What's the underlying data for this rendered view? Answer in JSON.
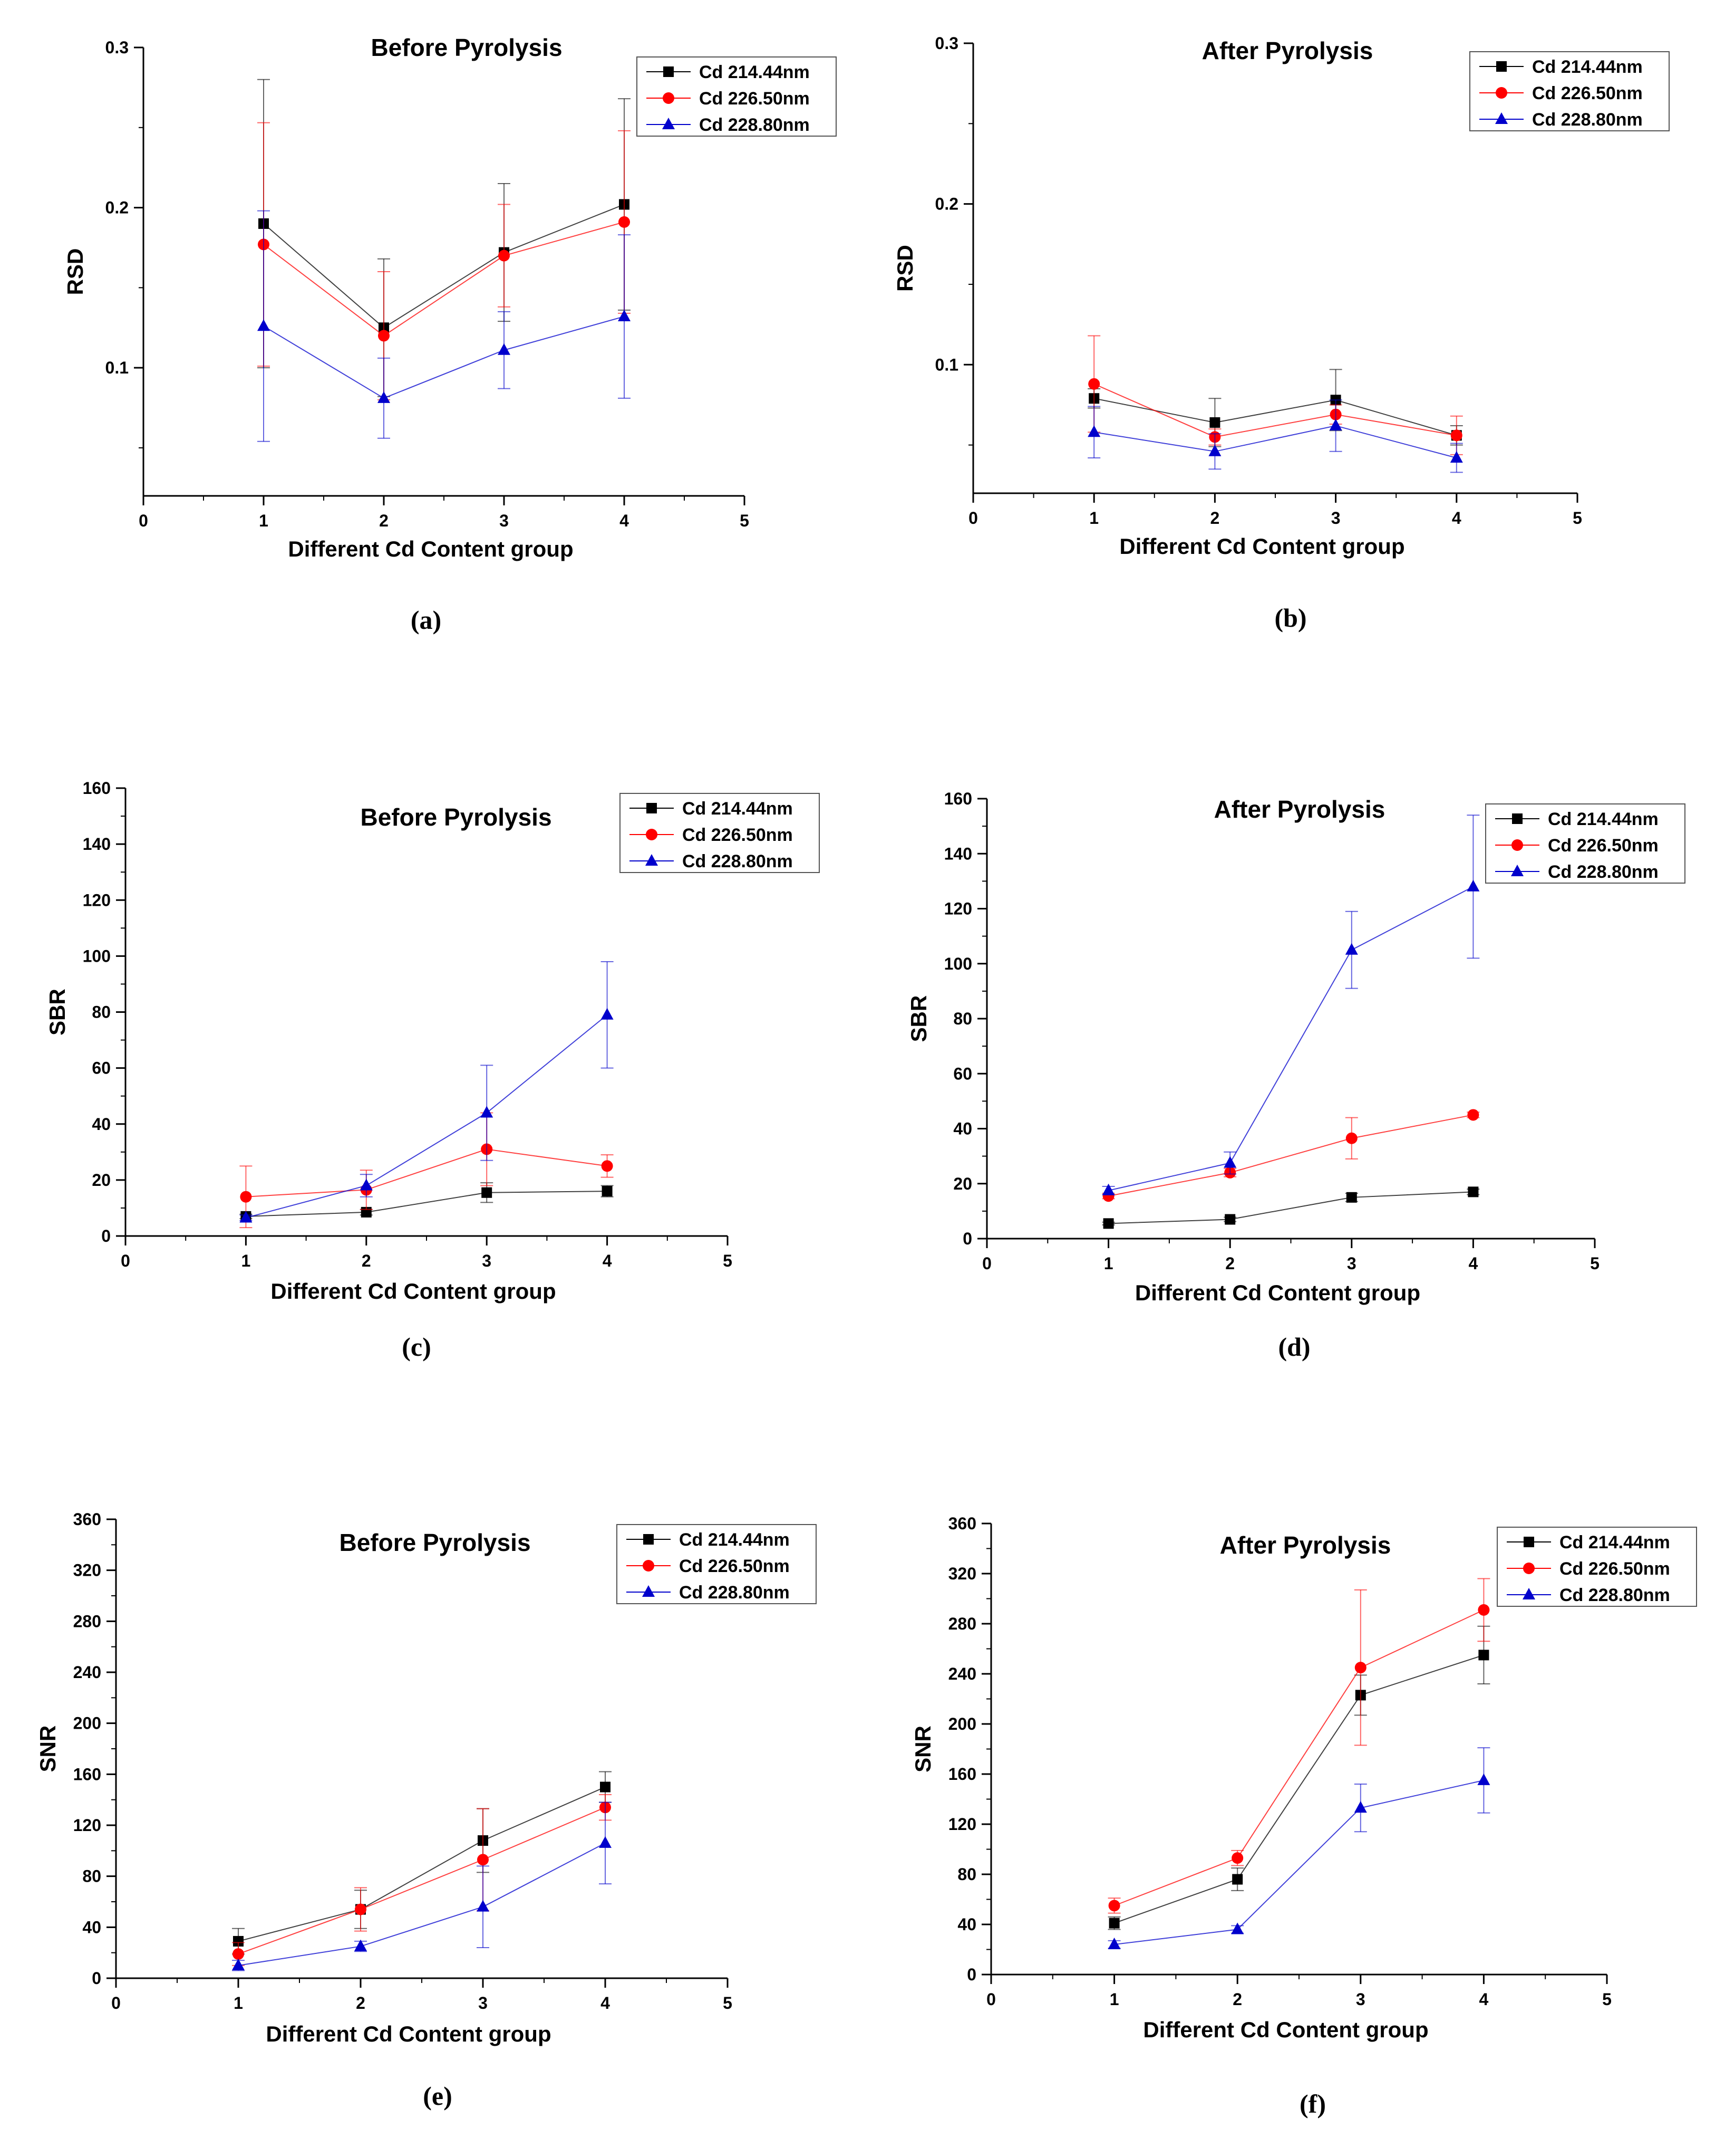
{
  "chart_data": [
    {
      "panel": "(a)",
      "type": "line",
      "title": "Before Pyrolysis",
      "xlabel": "Different Cd Content group",
      "ylabel": "RSD",
      "xlim": [
        0,
        5
      ],
      "ylim": [
        0.02,
        0.3
      ],
      "xticks": [
        "0",
        "1",
        "2",
        "3",
        "4",
        "5"
      ],
      "yticks": [
        "0.1",
        "0.2",
        "0.3"
      ],
      "x": [
        1,
        2,
        3,
        4
      ],
      "series": [
        {
          "name": "Cd 214.44nm",
          "color": "#000000",
          "marker": "square",
          "values": [
            0.19,
            0.125,
            0.172,
            0.202
          ],
          "errors": [
            0.09,
            0.043,
            0.043,
            0.066
          ]
        },
        {
          "name": "Cd 226.50nm",
          "color": "#ff0000",
          "marker": "circle",
          "values": [
            0.177,
            0.12,
            0.17,
            0.191
          ],
          "errors": [
            0.076,
            0.04,
            0.032,
            0.057
          ]
        },
        {
          "name": "Cd 228.80nm",
          "color": "#0000cc",
          "marker": "triangle",
          "values": [
            0.126,
            0.081,
            0.111,
            0.132
          ],
          "errors": [
            0.072,
            0.025,
            0.024,
            0.051
          ]
        }
      ]
    },
    {
      "panel": "(b)",
      "type": "line",
      "title": "After Pyrolysis",
      "xlabel": "Different Cd Content group",
      "ylabel": "RSD",
      "xlim": [
        0,
        5
      ],
      "ylim": [
        0.02,
        0.3
      ],
      "xticks": [
        "0",
        "1",
        "2",
        "3",
        "4",
        "5"
      ],
      "yticks": [
        "0.1",
        "0.2",
        "0.3"
      ],
      "x": [
        1,
        2,
        3,
        4
      ],
      "series": [
        {
          "name": "Cd 214.44nm",
          "color": "#000000",
          "marker": "square",
          "values": [
            0.079,
            0.064,
            0.078,
            0.056
          ],
          "errors": [
            0.006,
            0.015,
            0.019,
            0.006
          ]
        },
        {
          "name": "Cd 226.50nm",
          "color": "#ff0000",
          "marker": "circle",
          "values": [
            0.088,
            0.055,
            0.069,
            0.056
          ],
          "errors": [
            0.03,
            0.005,
            0.006,
            0.012
          ]
        },
        {
          "name": "Cd 228.80nm",
          "color": "#0000cc",
          "marker": "triangle",
          "values": [
            0.058,
            0.046,
            0.062,
            0.042
          ],
          "errors": [
            0.016,
            0.011,
            0.016,
            0.009
          ]
        }
      ]
    },
    {
      "panel": "(c)",
      "type": "line",
      "title": "Before Pyrolysis",
      "xlabel": "Different Cd Content group",
      "ylabel": "SBR",
      "xlim": [
        0,
        5
      ],
      "ylim": [
        0,
        160
      ],
      "xticks": [
        "0",
        "1",
        "2",
        "3",
        "4",
        "5"
      ],
      "yticks": [
        "0",
        "20",
        "40",
        "60",
        "80",
        "100",
        "120",
        "140",
        "160"
      ],
      "x": [
        1,
        2,
        3,
        4
      ],
      "series": [
        {
          "name": "Cd 214.44nm",
          "color": "#000000",
          "marker": "square",
          "values": [
            7,
            8.5,
            15.5,
            16
          ],
          "errors": [
            0.8,
            1,
            3.5,
            2
          ]
        },
        {
          "name": "Cd 226.50nm",
          "color": "#ff0000",
          "marker": "circle",
          "values": [
            14,
            16.5,
            31,
            25
          ],
          "errors": [
            11,
            7,
            13,
            4
          ]
        },
        {
          "name": "Cd 228.80nm",
          "color": "#0000cc",
          "marker": "triangle",
          "values": [
            6.5,
            18,
            44,
            79
          ],
          "errors": [
            1,
            4,
            17,
            19
          ]
        }
      ]
    },
    {
      "panel": "(d)",
      "type": "line",
      "title": "After Pyrolysis",
      "xlabel": "Different Cd Content group",
      "ylabel": "SBR",
      "xlim": [
        0,
        5
      ],
      "ylim": [
        0,
        160
      ],
      "xticks": [
        "0",
        "1",
        "2",
        "3",
        "4",
        "5"
      ],
      "yticks": [
        "0",
        "20",
        "40",
        "60",
        "80",
        "100",
        "120",
        "140",
        "160"
      ],
      "x": [
        1,
        2,
        3,
        4
      ],
      "series": [
        {
          "name": "Cd 214.44nm",
          "color": "#000000",
          "marker": "square",
          "values": [
            5.5,
            7,
            15,
            17
          ],
          "errors": [
            0.5,
            0.8,
            1.5,
            1
          ]
        },
        {
          "name": "Cd 226.50nm",
          "color": "#ff0000",
          "marker": "circle",
          "values": [
            15.5,
            24,
            36.5,
            45
          ],
          "errors": [
            1,
            1.5,
            7.5,
            1
          ]
        },
        {
          "name": "Cd 228.80nm",
          "color": "#0000cc",
          "marker": "triangle",
          "values": [
            17.5,
            27.5,
            105,
            128
          ],
          "errors": [
            1.5,
            4,
            14,
            26
          ]
        }
      ]
    },
    {
      "panel": "(e)",
      "type": "line",
      "title": "Before Pyrolysis",
      "xlabel": "Different Cd Content group",
      "ylabel": "SNR",
      "xlim": [
        0,
        5
      ],
      "ylim": [
        0,
        360
      ],
      "xticks": [
        "0",
        "1",
        "2",
        "3",
        "4",
        "5"
      ],
      "yticks": [
        "0",
        "40",
        "80",
        "120",
        "160",
        "200",
        "240",
        "280",
        "320",
        "360"
      ],
      "x": [
        1,
        2,
        3,
        4
      ],
      "series": [
        {
          "name": "Cd 214.44nm",
          "color": "#000000",
          "marker": "square",
          "values": [
            29,
            54,
            108,
            150
          ],
          "errors": [
            10,
            15,
            25,
            12
          ]
        },
        {
          "name": "Cd 226.50nm",
          "color": "#ff0000",
          "marker": "circle",
          "values": [
            19,
            54,
            93,
            134
          ],
          "errors": [
            9,
            17,
            40,
            10
          ]
        },
        {
          "name": "Cd 228.80nm",
          "color": "#0000cc",
          "marker": "triangle",
          "values": [
            10,
            25,
            56,
            106
          ],
          "errors": [
            4,
            4,
            32,
            32
          ]
        }
      ]
    },
    {
      "panel": "(f)",
      "type": "line",
      "title": "After Pyrolysis",
      "xlabel": "Different Cd Content group",
      "ylabel": "SNR",
      "xlim": [
        0,
        5
      ],
      "ylim": [
        0,
        360
      ],
      "xticks": [
        "0",
        "1",
        "2",
        "3",
        "4",
        "5"
      ],
      "yticks": [
        "0",
        "40",
        "80",
        "120",
        "160",
        "200",
        "240",
        "280",
        "320",
        "360"
      ],
      "x": [
        1,
        2,
        3,
        4
      ],
      "series": [
        {
          "name": "Cd 214.44nm",
          "color": "#000000",
          "marker": "square",
          "values": [
            41,
            76,
            223,
            255
          ],
          "errors": [
            5,
            9,
            16,
            23
          ]
        },
        {
          "name": "Cd 226.50nm",
          "color": "#ff0000",
          "marker": "circle",
          "values": [
            55,
            93,
            245,
            291
          ],
          "errors": [
            6,
            6,
            62,
            25
          ]
        },
        {
          "name": "Cd 228.80nm",
          "color": "#0000cc",
          "marker": "triangle",
          "values": [
            24,
            36,
            133,
            155
          ],
          "errors": [
            3,
            3,
            19,
            26
          ]
        }
      ]
    }
  ]
}
